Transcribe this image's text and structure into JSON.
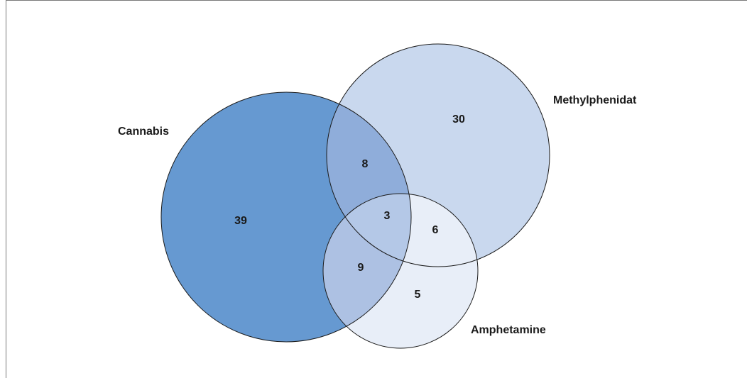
{
  "diagram": {
    "type": "venn-3",
    "sets": {
      "cannabis": {
        "label": "Cannabis",
        "color": "#6699d1"
      },
      "methylphenidat": {
        "label": "Methylphenidat",
        "color": "#c9d8ee"
      },
      "amphetamine": {
        "label": "Amphetamine",
        "color": "#e8eef8"
      }
    },
    "regions": {
      "cannabis_only": "39",
      "methylphenidat_only": "30",
      "amphetamine_only": "5",
      "cannabis_methylphenidat": "8",
      "cannabis_amphetamine": "9",
      "methylphenidat_amphetamine": "6",
      "all_three": "3"
    },
    "overlap_colors": {
      "cannabis_methylphenidat": "#8fadda",
      "cannabis_amphetamine": "#adc1e3",
      "all_three": "#b4c8e7"
    }
  }
}
